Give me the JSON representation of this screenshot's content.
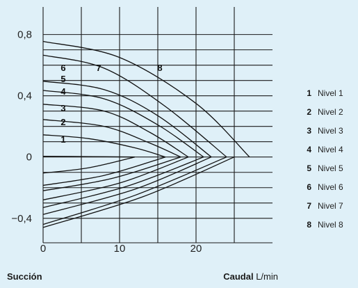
{
  "chart_data": {
    "type": "line",
    "x_ticks": [
      "0",
      "10",
      "20"
    ],
    "y_ticks": [
      "0,8",
      "0,4",
      "0",
      "−0,4"
    ],
    "xlim": [
      0,
      30
    ],
    "ylim": [
      -0.56,
      0.98
    ],
    "grid": true,
    "legend_position": "right",
    "x_label_left": "Succión",
    "x_label_bold": "Caudal",
    "x_label_unit": "L/min",
    "series": [
      {
        "name": "Nivel 1",
        "label": "1",
        "upper": [
          [
            0,
            0.005
          ],
          [
            6,
            0.003
          ],
          [
            12,
            0.0
          ]
        ],
        "lower": [
          [
            0,
            -0.105
          ],
          [
            6,
            -0.07
          ],
          [
            12,
            0.0
          ]
        ]
      },
      {
        "name": "Nivel 2",
        "label": "2",
        "upper": [
          [
            0,
            0.145
          ],
          [
            6,
            0.12
          ],
          [
            12,
            0.06
          ],
          [
            16,
            0.0
          ]
        ],
        "lower": [
          [
            0,
            -0.185
          ],
          [
            8,
            -0.12
          ],
          [
            16,
            0.0
          ]
        ]
      },
      {
        "name": "Nivel 3",
        "label": "3",
        "upper": [
          [
            0,
            0.245
          ],
          [
            8,
            0.2
          ],
          [
            14,
            0.09
          ],
          [
            18,
            0.0
          ]
        ],
        "lower": [
          [
            0,
            -0.22
          ],
          [
            9,
            -0.14
          ],
          [
            18,
            0.0
          ]
        ]
      },
      {
        "name": "Nivel 4",
        "label": "4",
        "upper": [
          [
            0,
            0.345
          ],
          [
            8,
            0.3
          ],
          [
            14,
            0.16
          ],
          [
            19,
            0.0
          ]
        ],
        "lower": [
          [
            0,
            -0.28
          ],
          [
            10,
            -0.17
          ],
          [
            19,
            0.0
          ]
        ]
      },
      {
        "name": "Nivel 5",
        "label": "5",
        "upper": [
          [
            0,
            0.435
          ],
          [
            8,
            0.38
          ],
          [
            15,
            0.21
          ],
          [
            21,
            0.0
          ]
        ],
        "lower": [
          [
            0,
            -0.33
          ],
          [
            11,
            -0.19
          ],
          [
            21,
            0.0
          ]
        ]
      },
      {
        "name": "Nivel 6",
        "label": "6",
        "upper": [
          [
            0,
            0.495
          ],
          [
            8,
            0.44
          ],
          [
            15,
            0.27
          ],
          [
            22,
            0.0
          ]
        ],
        "lower": [
          [
            0,
            -0.375
          ],
          [
            12,
            -0.21
          ],
          [
            22,
            0.0
          ]
        ]
      },
      {
        "name": "Nivel 7",
        "label": "7",
        "upper": [
          [
            0,
            0.665
          ],
          [
            8,
            0.58
          ],
          [
            16,
            0.33
          ],
          [
            24,
            0.0
          ]
        ],
        "lower": [
          [
            0,
            -0.44
          ],
          [
            12,
            -0.25
          ],
          [
            24,
            0.0
          ]
        ]
      },
      {
        "name": "Nivel 8",
        "label": "8",
        "upper": [
          [
            0,
            0.755
          ],
          [
            10,
            0.65
          ],
          [
            20,
            0.35
          ],
          [
            27,
            0.0
          ]
        ],
        "lower": [
          [
            0,
            -0.46
          ],
          [
            13,
            -0.26
          ],
          [
            25,
            0.0
          ]
        ]
      }
    ]
  }
}
